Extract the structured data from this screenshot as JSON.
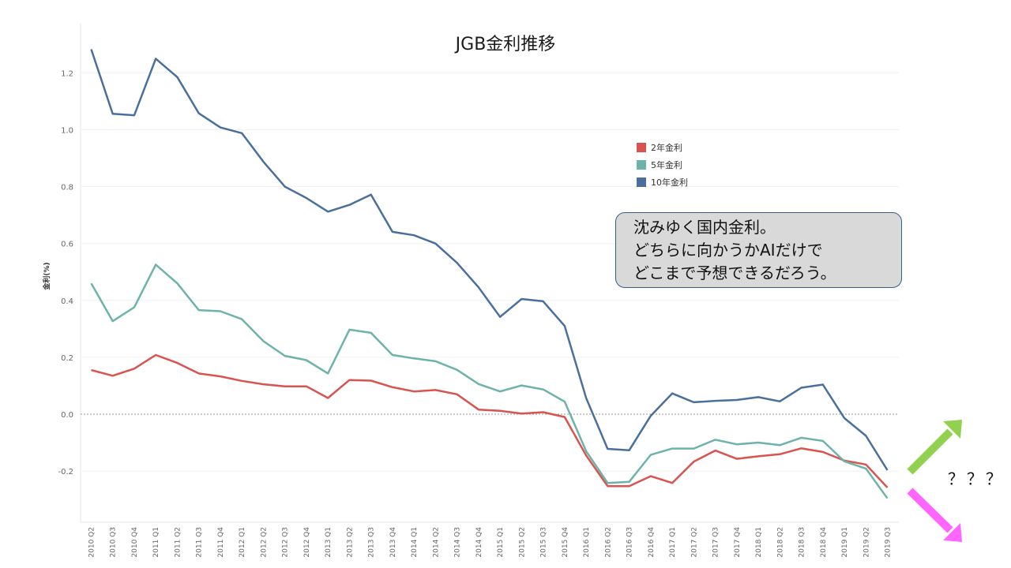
{
  "chart_data": {
    "type": "line",
    "title": "JGB金利推移",
    "ylabel": "金利(%)",
    "xlabel": "",
    "ylim": [
      -0.38,
      1.28
    ],
    "yticks": [
      "1.2",
      "1.0",
      "0.8",
      "0.6",
      "0.4",
      "0.2",
      "0.0",
      "-0.2"
    ],
    "ytick_values": [
      1.2,
      1.0,
      0.8,
      0.6,
      0.4,
      0.2,
      0.0,
      -0.2
    ],
    "grid": true,
    "legend_position": "top-right",
    "categories": [
      "2010 Q2",
      "2010 Q3",
      "2010 Q4",
      "2011 Q1",
      "2011 Q2",
      "2011 Q3",
      "2011 Q4",
      "2012 Q1",
      "2012 Q2",
      "2012 Q3",
      "2012 Q4",
      "2013 Q1",
      "2013 Q2",
      "2013 Q3",
      "2013 Q4",
      "2014 Q1",
      "2014 Q2",
      "2014 Q3",
      "2014 Q4",
      "2015 Q1",
      "2015 Q2",
      "2015 Q3",
      "2015 Q4",
      "2016 Q1",
      "2016 Q2",
      "2016 Q3",
      "2016 Q4",
      "2017 Q1",
      "2017 Q2",
      "2017 Q3",
      "2017 Q4",
      "2018 Q1",
      "2018 Q2",
      "2018 Q3",
      "2018 Q4",
      "2019 Q1",
      "2019 Q2",
      "2019 Q3"
    ],
    "series": [
      {
        "name": "2年金利",
        "color": "#d9534f",
        "values": [
          0.155,
          0.135,
          0.16,
          0.208,
          0.18,
          0.143,
          0.133,
          0.117,
          0.105,
          0.098,
          0.098,
          0.057,
          0.12,
          0.118,
          0.095,
          0.08,
          0.085,
          0.07,
          0.016,
          0.012,
          0.002,
          0.007,
          -0.01,
          -0.145,
          -0.253,
          -0.253,
          -0.218,
          -0.242,
          -0.167,
          -0.128,
          -0.157,
          -0.148,
          -0.141,
          -0.12,
          -0.133,
          -0.163,
          -0.177,
          -0.258
        ]
      },
      {
        "name": "5年金利",
        "color": "#6db3aa",
        "values": [
          0.46,
          0.327,
          0.376,
          0.526,
          0.46,
          0.366,
          0.362,
          0.334,
          0.257,
          0.205,
          0.19,
          0.143,
          0.297,
          0.286,
          0.208,
          0.196,
          0.186,
          0.156,
          0.106,
          0.08,
          0.101,
          0.087,
          0.044,
          -0.13,
          -0.242,
          -0.238,
          -0.143,
          -0.121,
          -0.121,
          -0.09,
          -0.106,
          -0.1,
          -0.109,
          -0.083,
          -0.094,
          -0.166,
          -0.191,
          -0.296
        ]
      },
      {
        "name": "10年金利",
        "color": "#4a6f9c",
        "values": [
          1.283,
          1.056,
          1.051,
          1.25,
          1.185,
          1.058,
          1.008,
          0.988,
          0.888,
          0.8,
          0.76,
          0.712,
          0.736,
          0.772,
          0.641,
          0.629,
          0.6,
          0.532,
          0.446,
          0.342,
          0.405,
          0.397,
          0.31,
          0.057,
          -0.122,
          -0.127,
          -0.006,
          0.073,
          0.042,
          0.047,
          0.05,
          0.06,
          0.045,
          0.093,
          0.104,
          -0.014,
          -0.076,
          -0.197
        ]
      }
    ]
  },
  "legend": {
    "items": [
      "2年金利",
      "5年金利",
      "10年金利"
    ]
  },
  "callout": {
    "lines": [
      "沈みゆく国内金利。",
      "どちらに向かうかAIだけで",
      "どこまで予想できるだろう。"
    ]
  },
  "annotation": {
    "question": "？？？",
    "up_arrow_color": "#92d050",
    "down_arrow_color": "#ff66ff"
  }
}
